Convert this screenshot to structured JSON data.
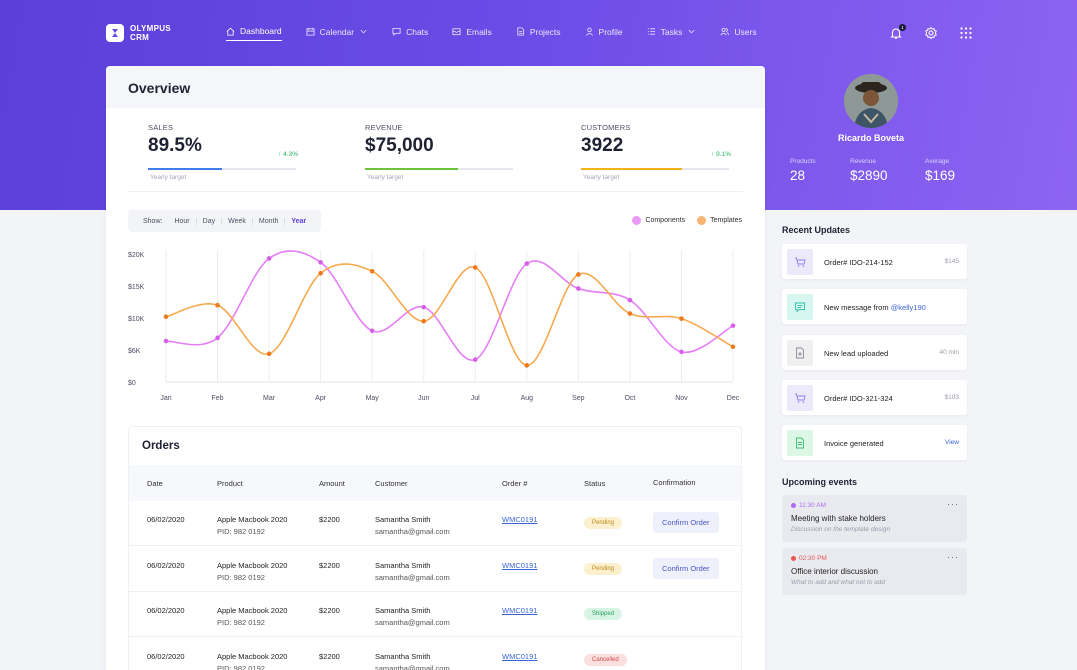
{
  "brand": {
    "name_line1": "OLYMPUS",
    "name_line2": "CRM"
  },
  "nav": [
    {
      "label": "Dashboard",
      "icon": "home-icon",
      "active": true
    },
    {
      "label": "Calendar",
      "icon": "calendar-icon",
      "dropdown": true
    },
    {
      "label": "Chats",
      "icon": "chat-icon"
    },
    {
      "label": "Emails",
      "icon": "mail-icon"
    },
    {
      "label": "Projects",
      "icon": "document-icon"
    },
    {
      "label": "Profile",
      "icon": "user-icon"
    },
    {
      "label": "Tasks",
      "icon": "list-icon",
      "dropdown": true
    },
    {
      "label": "Users",
      "icon": "users-icon"
    }
  ],
  "topbar": {
    "notification_count": "1"
  },
  "overview": {
    "title": "Overview",
    "kpis": [
      {
        "label": "SALES",
        "value": "89.5%",
        "trend": "↑ 4.3%",
        "sub": "Yearly target",
        "progress": 0.5,
        "color": "#3f7ee8"
      },
      {
        "label": "REVENUE",
        "value": "$75,000",
        "trend": "",
        "sub": "Yearly target",
        "progress": 0.63,
        "color": "#6bc43a"
      },
      {
        "label": "CUSTOMERS",
        "value": "3922",
        "trend": "↑ 9.1%",
        "sub": "Yearly target",
        "progress": 0.68,
        "color": "#f0b216"
      }
    ],
    "range": {
      "label": "Show:",
      "options": [
        "Hour",
        "Day",
        "Week",
        "Month",
        "Year"
      ],
      "selected": "Year"
    },
    "legend": [
      {
        "name": "Components",
        "color": "#e89af5"
      },
      {
        "name": "Templates",
        "color": "#f5b471"
      }
    ]
  },
  "chart_data": {
    "type": "line",
    "x": [
      "Jan",
      "Feb",
      "Mar",
      "Apr",
      "May",
      "Jun",
      "Jul",
      "Aug",
      "Sep",
      "Oct",
      "Nov",
      "Dec"
    ],
    "yticks": [
      "$20K",
      "$15K",
      "$10K",
      "$6K",
      "$0"
    ],
    "ylim": [
      0,
      20000
    ],
    "grid": "vertical",
    "series": [
      {
        "name": "Components",
        "color": "#e67ef7",
        "values": [
          6400,
          6900,
          19300,
          18700,
          8000,
          11700,
          3500,
          18500,
          14600,
          12800,
          4700,
          8800
        ]
      },
      {
        "name": "Templates",
        "color": "#f7a94f",
        "values": [
          10200,
          12000,
          4400,
          17000,
          17300,
          9500,
          17900,
          2600,
          16800,
          10700,
          9900,
          5500
        ]
      }
    ]
  },
  "orders": {
    "title": "Orders",
    "columns": [
      "Date",
      "Product",
      "Amount",
      "Customer",
      "Order #",
      "Status",
      "Confirmation"
    ],
    "rows": [
      {
        "date": "06/02/2020",
        "product": "Apple Macbook 2020",
        "pid": "PID: 982 0192",
        "amount": "$2200",
        "customer": "Samantha Smith",
        "email": "samantha@gmail.com",
        "order": "WMC0191",
        "status": "Pending",
        "action": "Confirm Order"
      },
      {
        "date": "06/02/2020",
        "product": "Apple Macbook 2020",
        "pid": "PID: 982 0192",
        "amount": "$2200",
        "customer": "Samantha Smith",
        "email": "samantha@gmail.com",
        "order": "WMC0191",
        "status": "Pending",
        "action": "Confirm Order"
      },
      {
        "date": "06/02/2020",
        "product": "Apple Macbook 2020",
        "pid": "PID: 982 0192",
        "amount": "$2200",
        "customer": "Samantha Smith",
        "email": "samantha@gmail.com",
        "order": "WMC0191",
        "status": "Shipped",
        "action": ""
      },
      {
        "date": "06/02/2020",
        "product": "Apple Macbook 2020",
        "pid": "PID: 982 0192",
        "amount": "$2200",
        "customer": "Samantha Smith",
        "email": "samantha@gmail.com",
        "order": "WMC0191",
        "status": "Cancelled",
        "action": ""
      }
    ]
  },
  "profile": {
    "name": "Ricardo Boveta",
    "stats": [
      {
        "label": "Products",
        "value": "28"
      },
      {
        "label": "Revenue",
        "value": "$2890"
      },
      {
        "label": "Average",
        "value": "$169"
      }
    ]
  },
  "recent_updates": {
    "title": "Recent Updates",
    "items": [
      {
        "text": "Order# IDO-214-152",
        "right": "$145",
        "icon": "cart-icon",
        "bg": "#ece9fb",
        "fg": "#8b7ef0"
      },
      {
        "text": "New message from ",
        "handle": "@kelly190",
        "right": "",
        "icon": "message-icon",
        "bg": "#d8f6f0",
        "fg": "#34c3a6"
      },
      {
        "text": "New lead uploaded",
        "right": "40 min",
        "icon": "file-plus-icon",
        "bg": "#f0f0f3",
        "fg": "#8a8c99"
      },
      {
        "text": "Order# IDO-321-324",
        "right": "$103",
        "icon": "cart-icon",
        "bg": "#ece9fb",
        "fg": "#8b7ef0"
      },
      {
        "text": "Invoice generated",
        "right": "View",
        "icon": "invoice-icon",
        "bg": "#dcf7e5",
        "fg": "#3fbf6f"
      }
    ]
  },
  "upcoming_events": {
    "title": "Upcoming events",
    "items": [
      {
        "time": "11:30 AM",
        "title": "Meeting with stake holders",
        "desc": "Discussion on the template design",
        "color": "#b06af0"
      },
      {
        "time": "02:30 PM",
        "title": "Office interior discussion",
        "desc": "What to add and what not to add",
        "color": "#e8584f"
      }
    ]
  }
}
